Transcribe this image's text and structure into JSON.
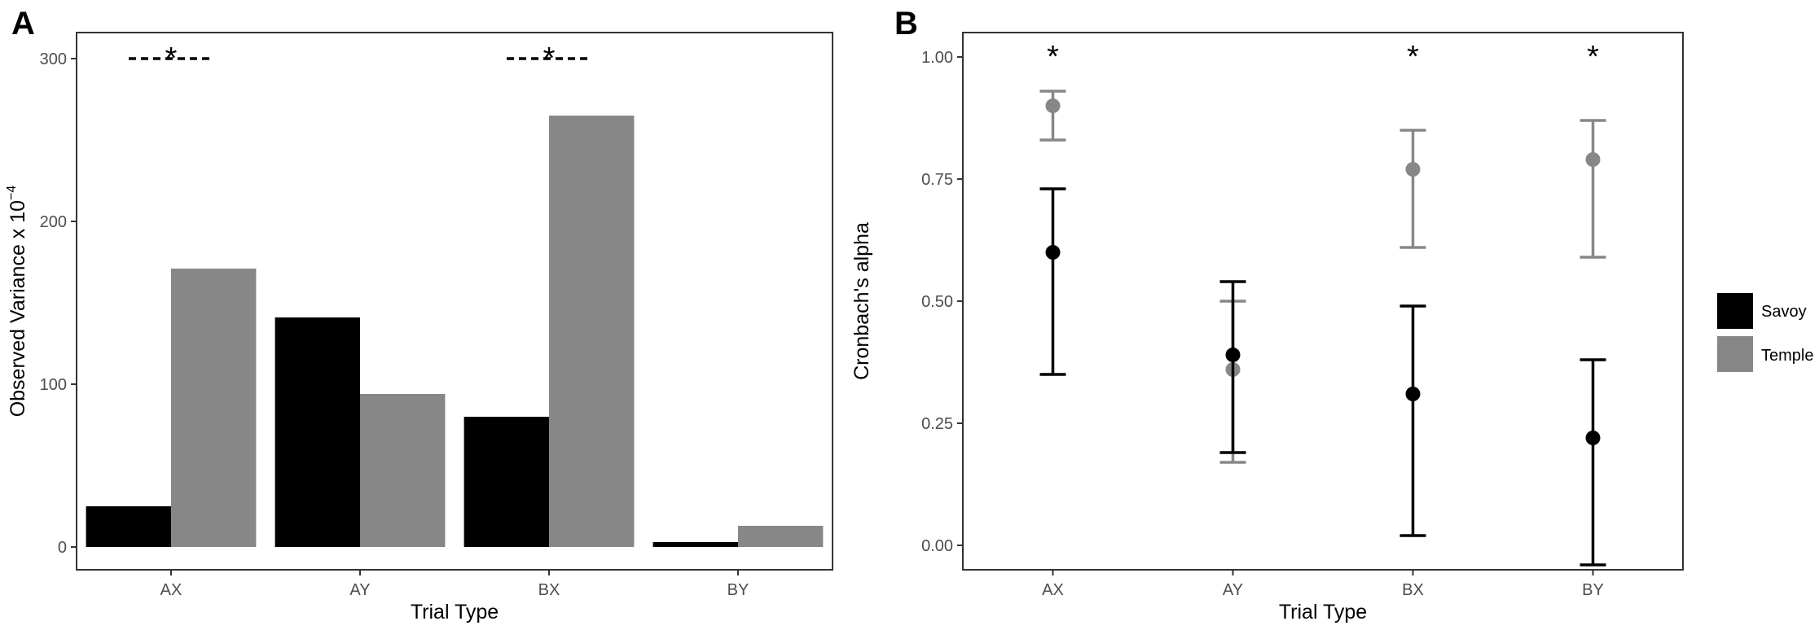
{
  "chart_data": [
    {
      "panel": "A",
      "type": "bar",
      "xlabel": "Trial Type",
      "ylabel_main": "Observed Variance x 10",
      "ylabel_exp": "−4",
      "categories": [
        "AX",
        "AY",
        "BX",
        "BY"
      ],
      "series": [
        {
          "name": "Savoy",
          "color": "#000000",
          "values": [
            25,
            141,
            80,
            3
          ]
        },
        {
          "name": "Temple",
          "color": "#878787",
          "values": [
            171,
            94,
            265,
            13
          ]
        }
      ],
      "ylim": [
        -14,
        316
      ],
      "yticks": [
        0,
        100,
        200,
        300
      ],
      "ytick_labels": [
        "0",
        "100",
        "200",
        "300"
      ],
      "significance": [
        {
          "category": "AX",
          "y": 300,
          "label": "*"
        },
        {
          "category": "BX",
          "y": 300,
          "label": "*"
        }
      ]
    },
    {
      "panel": "B",
      "type": "scatter",
      "xlabel": "Trial Type",
      "ylabel": "Cronbach's alpha",
      "categories": [
        "AX",
        "AY",
        "BX",
        "BY"
      ],
      "series": [
        {
          "name": "Savoy",
          "color": "#000000",
          "values": [
            0.6,
            0.39,
            0.31,
            0.22
          ],
          "lower": [
            0.35,
            0.19,
            0.02,
            -0.04
          ],
          "upper": [
            0.73,
            0.54,
            0.49,
            0.38
          ]
        },
        {
          "name": "Temple",
          "color": "#878787",
          "values": [
            0.9,
            0.36,
            0.77,
            0.79
          ],
          "lower": [
            0.83,
            0.17,
            0.61,
            0.59
          ],
          "upper": [
            0.93,
            0.5,
            0.85,
            0.87
          ]
        }
      ],
      "ylim": [
        -0.05,
        1.05
      ],
      "yticks": [
        0,
        0.25,
        0.5,
        0.75,
        1.0
      ],
      "ytick_labels": [
        "0.00",
        "0.25",
        "0.50",
        "0.75",
        "1.00"
      ],
      "significance": [
        {
          "category": "AX",
          "y": 1.0,
          "label": "*"
        },
        {
          "category": "BX",
          "y": 1.0,
          "label": "*"
        },
        {
          "category": "BY",
          "y": 1.0,
          "label": "*"
        }
      ]
    }
  ],
  "legend": {
    "position": "right",
    "items": [
      {
        "label": "Savoy",
        "color": "#000000"
      },
      {
        "label": "Temple",
        "color": "#878787"
      }
    ]
  },
  "panel_letters": [
    "A",
    "B"
  ]
}
